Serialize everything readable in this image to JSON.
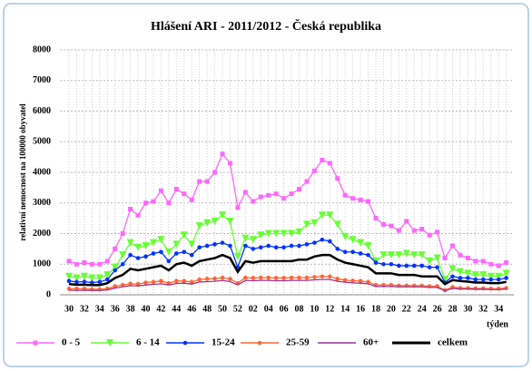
{
  "chart_data": {
    "type": "line",
    "title": "Hlášení ARI - 2011/2012 - Česká republika",
    "y_label": "relativní nemocnost na 100000 obyvatel",
    "x_label": "týden",
    "categories": [
      "30",
      null,
      "32",
      null,
      "34",
      null,
      "36",
      null,
      "38",
      null,
      "40",
      null,
      "42",
      null,
      "44",
      null,
      "46",
      null,
      "48",
      null,
      "50",
      null,
      "52",
      null,
      "02",
      null,
      "04",
      null,
      "06",
      null,
      "08",
      null,
      "10",
      null,
      "12",
      null,
      "14",
      null,
      "16",
      null,
      "18",
      null,
      "20",
      null,
      "22",
      null,
      "24",
      null,
      "26",
      null,
      "28",
      null,
      "30",
      null,
      "32",
      null,
      "34",
      null
    ],
    "ylim": [
      0,
      8000
    ],
    "yticks": [
      0,
      1000,
      2000,
      3000,
      4000,
      5000,
      6000,
      7000,
      8000
    ],
    "grid": true,
    "legend": "bottom",
    "series": [
      {
        "name": "0 - 5",
        "color": "#ff66ff",
        "marker": "square",
        "values": [
          1100,
          1000,
          1050,
          1000,
          1000,
          1100,
          1500,
          2000,
          2800,
          2600,
          3000,
          3050,
          3400,
          3000,
          3450,
          3300,
          3100,
          3700,
          3700,
          4000,
          4600,
          4300,
          2850,
          3350,
          3050,
          3200,
          3250,
          3300,
          3150,
          3300,
          3450,
          3700,
          4050,
          4400,
          4300,
          3800,
          3250,
          3150,
          3100,
          3050,
          2500,
          2300,
          2250,
          2100,
          2400,
          2100,
          2150,
          1950,
          2050,
          1200,
          1600,
          1300,
          1200,
          1100,
          1100,
          1000,
          950,
          1050
        ]
      },
      {
        "name": "6 - 14",
        "color": "#66ff33",
        "marker": "triangle",
        "values": [
          600,
          550,
          600,
          550,
          550,
          650,
          900,
          1300,
          1700,
          1550,
          1600,
          1700,
          1800,
          1400,
          1650,
          1950,
          1650,
          2250,
          2350,
          2400,
          2600,
          2400,
          1250,
          1850,
          1800,
          1950,
          2000,
          2000,
          2000,
          2000,
          2050,
          2300,
          2350,
          2600,
          2600,
          2300,
          1900,
          1800,
          1700,
          1600,
          1100,
          1300,
          1300,
          1300,
          1350,
          1300,
          1300,
          1100,
          1200,
          500,
          850,
          750,
          700,
          650,
          650,
          600,
          600,
          700
        ]
      },
      {
        "name": "15-24",
        "color": "#0033ff",
        "marker": "circle",
        "values": [
          450,
          420,
          430,
          400,
          420,
          500,
          800,
          1000,
          1300,
          1200,
          1250,
          1350,
          1400,
          1100,
          1350,
          1400,
          1300,
          1550,
          1600,
          1650,
          1700,
          1600,
          900,
          1600,
          1500,
          1550,
          1600,
          1550,
          1550,
          1600,
          1600,
          1650,
          1700,
          1800,
          1750,
          1500,
          1400,
          1400,
          1350,
          1300,
          1050,
          1000,
          1000,
          950,
          950,
          950,
          950,
          900,
          900,
          400,
          600,
          550,
          550,
          500,
          500,
          500,
          500,
          550
        ]
      },
      {
        "name": "25-59",
        "color": "#ff6633",
        "marker": "circle",
        "values": [
          200,
          200,
          200,
          180,
          180,
          200,
          280,
          320,
          360,
          350,
          400,
          420,
          450,
          380,
          450,
          450,
          420,
          500,
          520,
          530,
          560,
          520,
          380,
          560,
          550,
          560,
          560,
          550,
          550,
          560,
          560,
          560,
          580,
          600,
          600,
          520,
          480,
          460,
          450,
          420,
          320,
          320,
          320,
          300,
          300,
          300,
          300,
          280,
          280,
          150,
          250,
          220,
          220,
          210,
          210,
          200,
          200,
          220
        ]
      },
      {
        "name": "60+",
        "color": "#993399",
        "marker": "none",
        "values": [
          150,
          140,
          150,
          140,
          140,
          160,
          220,
          260,
          300,
          290,
          320,
          340,
          360,
          320,
          370,
          380,
          350,
          420,
          430,
          440,
          470,
          430,
          320,
          470,
          460,
          470,
          470,
          460,
          460,
          470,
          470,
          470,
          490,
          500,
          500,
          440,
          410,
          390,
          380,
          360,
          270,
          270,
          270,
          260,
          260,
          260,
          260,
          240,
          240,
          130,
          210,
          190,
          190,
          180,
          180,
          170,
          170,
          190
        ]
      },
      {
        "name": "celkem",
        "color": "#000000",
        "marker": "none",
        "values": [
          350,
          330,
          330,
          320,
          320,
          380,
          550,
          650,
          850,
          800,
          850,
          900,
          950,
          800,
          1000,
          1050,
          950,
          1100,
          1150,
          1200,
          1300,
          1200,
          750,
          1100,
          1050,
          1100,
          1100,
          1100,
          1100,
          1100,
          1150,
          1150,
          1250,
          1300,
          1300,
          1150,
          1050,
          1000,
          950,
          900,
          700,
          700,
          700,
          650,
          650,
          650,
          600,
          600,
          600,
          350,
          480,
          450,
          430,
          400,
          400,
          380,
          380,
          420
        ]
      }
    ]
  }
}
